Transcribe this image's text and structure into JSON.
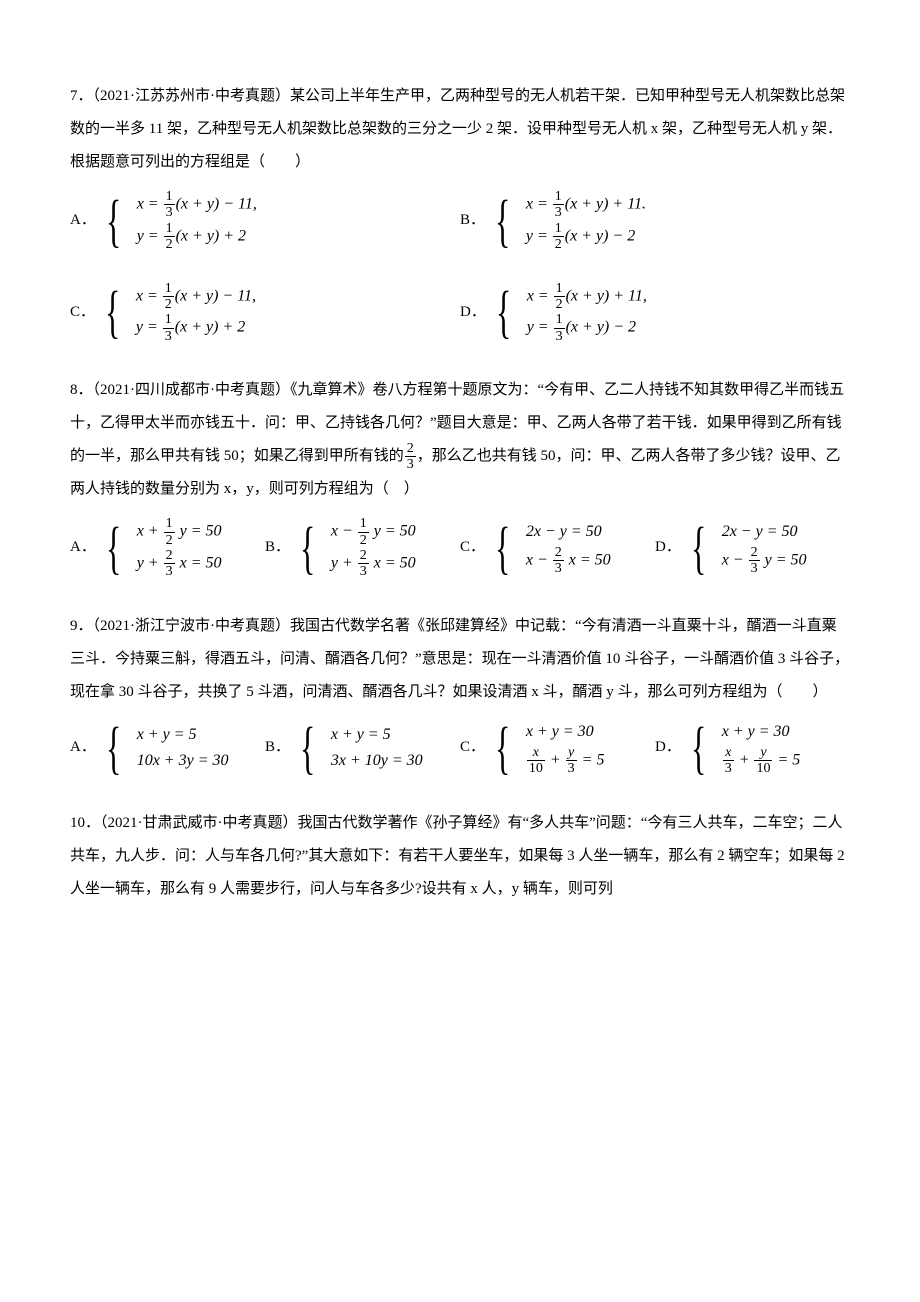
{
  "q7": {
    "stem": "7．（2021·江苏苏州市·中考真题）某公司上半年生产甲，乙两种型号的无人机若干架．已知甲种型号无人机架数比总架数的一半多 11 架，乙种型号无人机架数比总架数的三分之一少 2 架．设甲种型号无人机 x 架，乙种型号无人机 y 架．根据题意可列出的方程组是（　　）",
    "options": {
      "A": {
        "line1_pre": "x = ",
        "line1_frac_num": "1",
        "line1_frac_den": "3",
        "line1_post": "(x + y) − 11,",
        "line2_pre": "y = ",
        "line2_frac_num": "1",
        "line2_frac_den": "2",
        "line2_post": "(x + y) + 2"
      },
      "B": {
        "line1_pre": "x = ",
        "line1_frac_num": "1",
        "line1_frac_den": "3",
        "line1_post": "(x + y) + 11.",
        "line2_pre": "y = ",
        "line2_frac_num": "1",
        "line2_frac_den": "2",
        "line2_post": "(x + y) − 2"
      },
      "C": {
        "line1_pre": "x = ",
        "line1_frac_num": "1",
        "line1_frac_den": "2",
        "line1_post": "(x + y) − 11,",
        "line2_pre": "y = ",
        "line2_frac_num": "1",
        "line2_frac_den": "3",
        "line2_post": "(x + y) + 2"
      },
      "D": {
        "line1_pre": "x = ",
        "line1_frac_num": "1",
        "line1_frac_den": "2",
        "line1_post": "(x + y) + 11,",
        "line2_pre": "y = ",
        "line2_frac_num": "1",
        "line2_frac_den": "3",
        "line2_post": "(x + y) − 2"
      }
    }
  },
  "q8": {
    "stem_a": "8．（2021·四川成都市·中考真题）《九章算术》卷八方程第十题原文为：“今有甲、乙二人持钱不知其数甲得乙半而钱五十，乙得甲太半而亦钱五十．问：甲、乙持钱各几何？”题目大意是：甲、乙两人各带了若干钱．如果甲得到乙所有钱的一半，那么甲共有钱 50；如果乙得到甲所有钱的",
    "stem_frac_num": "2",
    "stem_frac_den": "3",
    "stem_b": "，那么乙也共有钱 50，问：甲、乙两人各带了多少钱？设甲、乙两人持钱的数量分别为 x，y，则可列方程组为（　）",
    "options": {
      "A": {
        "line1_pre": "x + ",
        "line1_frac_num": "1",
        "line1_frac_den": "2",
        "line1_post": " y = 50",
        "line2_pre": "y + ",
        "line2_frac_num": "2",
        "line2_frac_den": "3",
        "line2_post": " x = 50"
      },
      "B": {
        "line1_pre": "x − ",
        "line1_frac_num": "1",
        "line1_frac_den": "2",
        "line1_post": " y = 50",
        "line2_pre": "y + ",
        "line2_frac_num": "2",
        "line2_frac_den": "3",
        "line2_post": " x = 50"
      },
      "C": {
        "line1_plain": "2x − y = 50",
        "line2_pre": "x − ",
        "line2_frac_num": "2",
        "line2_frac_den": "3",
        "line2_post": " x = 50"
      },
      "D": {
        "line1_plain": "2x − y = 50",
        "line2_pre": "x − ",
        "line2_frac_num": "2",
        "line2_frac_den": "3",
        "line2_post": " y = 50"
      }
    }
  },
  "q9": {
    "stem": "9．（2021·浙江宁波市·中考真题）我国古代数学名著《张邱建算经》中记载：“今有清酒一斗直粟十斗，醑酒一斗直粟三斗．今持粟三斛，得酒五斗，问清、醑酒各几何？”意思是：现在一斗清酒价值 10 斗谷子，一斗醑酒价值 3 斗谷子，现在拿 30 斗谷子，共换了 5 斗酒，问清酒、醑酒各几斗？如果设清酒 x 斗，醑酒 y 斗，那么可列方程组为（　　）",
    "options": {
      "A": {
        "line1": "x + y = 5",
        "line2": "10x + 3y = 30"
      },
      "B": {
        "line1": "x + y = 5",
        "line2": "3x + 10y = 30"
      },
      "C": {
        "line1": "x + y = 30",
        "line2_f1_num": "x",
        "line2_f1_den": "10",
        "line2_mid": " + ",
        "line2_f2_num": "y",
        "line2_f2_den": "3",
        "line2_post": " = 5"
      },
      "D": {
        "line1": "x + y = 30",
        "line2_f1_num": "x",
        "line2_f1_den": "3",
        "line2_mid": " + ",
        "line2_f2_num": "y",
        "line2_f2_den": "10",
        "line2_post": " = 5"
      }
    }
  },
  "q10": {
    "stem": "10．（2021·甘肃武威市·中考真题）我国古代数学著作《孙子算经》有“多人共车”问题：“今有三人共车，二车空；二人共车，九人步．问：人与车各几何?”其大意如下：有若干人要坐车，如果每 3 人坐一辆车，那么有 2 辆空车；如果每 2 人坐一辆车，那么有 9 人需要步行，问人与车各多少?设共有 x 人，y 辆车，则可列"
  },
  "labels": {
    "A": "A．",
    "B": "B．",
    "C": "C．",
    "D": "D．"
  },
  "style": {
    "text_color": "#000000",
    "bg_color": "#ffffff",
    "font_size": 15
  }
}
